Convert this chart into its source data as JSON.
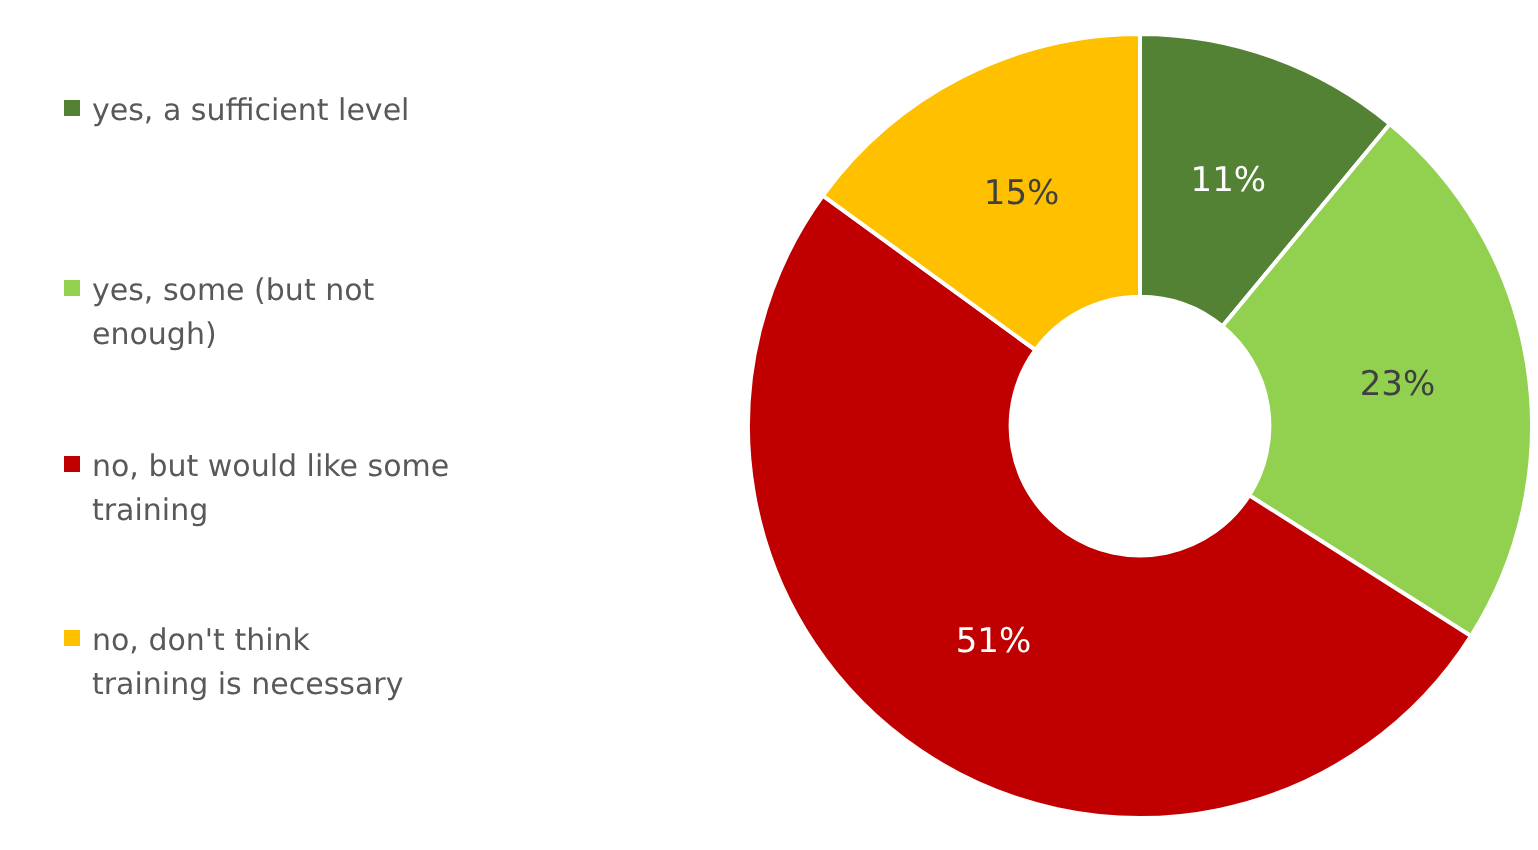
{
  "chart_data": {
    "type": "donut",
    "categories": [
      "yes, a sufficient level",
      "yes, some (but not enough)",
      "no, but would like some training",
      "no, don't think training is necessary"
    ],
    "values": [
      11,
      23,
      51,
      15
    ],
    "colors": [
      "#548235",
      "#92d050",
      "#c00000",
      "#ffc000"
    ],
    "value_labels": [
      "11%",
      "23%",
      "51%",
      "15%"
    ],
    "legend": "left"
  }
}
